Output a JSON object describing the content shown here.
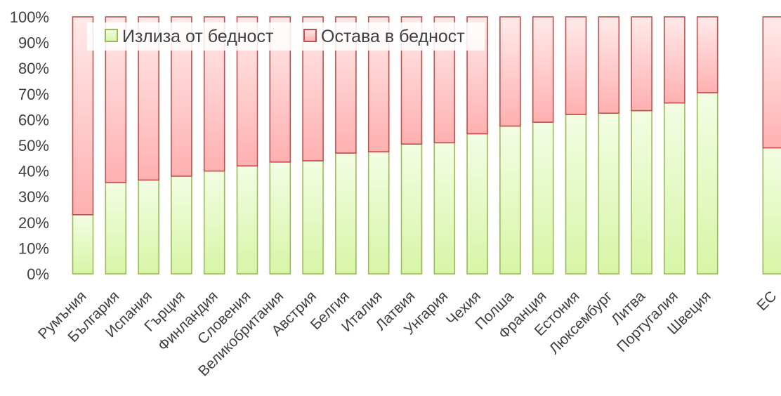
{
  "chart_data": {
    "type": "bar",
    "stacked": true,
    "percent": true,
    "categories": [
      "Румъния",
      "България",
      "Испания",
      "Гърция",
      "Финландия",
      "Словения",
      "Великобритания",
      "Австрия",
      "Белгия",
      "Италия",
      "Латвия",
      "Унгария",
      "Чехия",
      "Полша",
      "Франция",
      "Естония",
      "Люксембург",
      "Литва",
      "Португалия",
      "Швеция",
      "",
      "ЕС"
    ],
    "series": [
      {
        "name": "Излиза от бедност",
        "color": "#9bbb59",
        "values": [
          23,
          35.5,
          36.5,
          38,
          40,
          42,
          43.5,
          44,
          47,
          47.5,
          50.5,
          51,
          54.5,
          57.5,
          59,
          62,
          62.5,
          63.5,
          66.5,
          70.5,
          null,
          49
        ]
      },
      {
        "name": "Остава в бедност",
        "color": "#c0504d",
        "values": [
          77,
          64.5,
          63.5,
          62,
          60,
          58,
          56.5,
          56,
          53,
          52.5,
          49.5,
          49,
          45.5,
          42.5,
          41,
          38,
          37.5,
          36.5,
          33.5,
          29.5,
          null,
          51
        ]
      }
    ],
    "yticks": [
      "0%",
      "10%",
      "20%",
      "30%",
      "40%",
      "50%",
      "60%",
      "70%",
      "80%",
      "90%",
      "100%"
    ],
    "ylim": [
      0,
      100
    ],
    "grid": false,
    "legend": "top"
  }
}
